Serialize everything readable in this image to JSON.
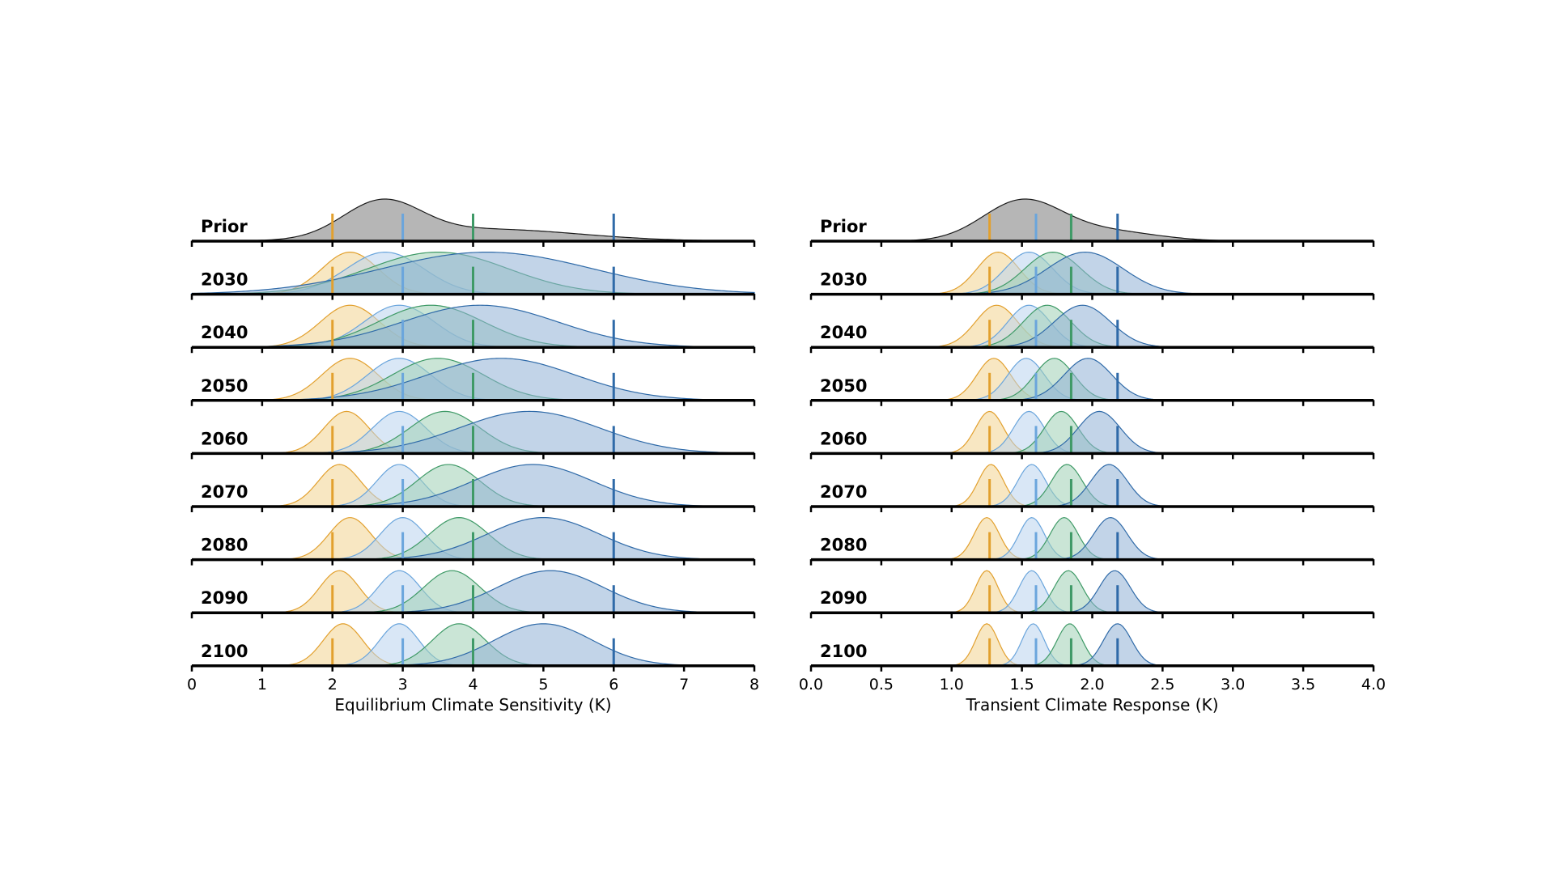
{
  "chart_data": [
    {
      "type": "area",
      "subtype": "ridgeline-density",
      "xlabel": "Equilibrium Climate Sensitivity (K)",
      "xlim": [
        0,
        8
      ],
      "xticks": [
        0,
        1,
        2,
        3,
        4,
        5,
        6,
        7,
        8
      ],
      "xticklabels": [
        "0",
        "1",
        "2",
        "3",
        "4",
        "5",
        "6",
        "7",
        "8"
      ],
      "rows": [
        "Prior",
        "2030",
        "2040",
        "2050",
        "2060",
        "2070",
        "2080",
        "2090",
        "2100"
      ],
      "true_value_markers": [
        {
          "value": 2.0,
          "color": "#e2a02e"
        },
        {
          "value": 3.0,
          "color": "#6aa5dc"
        },
        {
          "value": 4.0,
          "color": "#3f9a67"
        },
        {
          "value": 6.0,
          "color": "#2f6aa8"
        }
      ],
      "prior": {
        "color": "#a9a9a9",
        "components": [
          {
            "mean": 2.7,
            "sd": 0.55,
            "weight": 0.75
          },
          {
            "mean": 4.2,
            "sd": 1.3,
            "weight": 0.25
          }
        ]
      },
      "posteriors": [
        {
          "row": "2030",
          "series": [
            {
              "truth": 2.0,
              "color": "#f2d48f",
              "edge": "#e2a02e",
              "mean": 2.25,
              "sd": 0.4
            },
            {
              "truth": 3.0,
              "color": "#b9d4ee",
              "edge": "#6aa5dc",
              "mean": 2.75,
              "sd": 0.55
            },
            {
              "truth": 4.0,
              "color": "#9fd0b4",
              "edge": "#3f9a67",
              "mean": 3.5,
              "sd": 1.0
            },
            {
              "truth": 6.0,
              "color": "#8fb1d6",
              "edge": "#2f6aa8",
              "mean": 4.2,
              "sd": 1.5
            }
          ]
        },
        {
          "row": "2040",
          "series": [
            {
              "truth": 2.0,
              "color": "#f2d48f",
              "edge": "#e2a02e",
              "mean": 2.25,
              "sd": 0.42
            },
            {
              "truth": 3.0,
              "color": "#b9d4ee",
              "edge": "#6aa5dc",
              "mean": 2.95,
              "sd": 0.5
            },
            {
              "truth": 4.0,
              "color": "#9fd0b4",
              "edge": "#3f9a67",
              "mean": 3.4,
              "sd": 0.75
            },
            {
              "truth": 6.0,
              "color": "#8fb1d6",
              "edge": "#2f6aa8",
              "mean": 4.1,
              "sd": 1.1
            }
          ]
        },
        {
          "row": "2050",
          "series": [
            {
              "truth": 2.0,
              "color": "#f2d48f",
              "edge": "#e2a02e",
              "mean": 2.25,
              "sd": 0.4
            },
            {
              "truth": 3.0,
              "color": "#b9d4ee",
              "edge": "#6aa5dc",
              "mean": 2.95,
              "sd": 0.45
            },
            {
              "truth": 4.0,
              "color": "#9fd0b4",
              "edge": "#3f9a67",
              "mean": 3.5,
              "sd": 0.65
            },
            {
              "truth": 6.0,
              "color": "#8fb1d6",
              "edge": "#2f6aa8",
              "mean": 4.4,
              "sd": 1.05
            }
          ]
        },
        {
          "row": "2060",
          "series": [
            {
              "truth": 2.0,
              "color": "#f2d48f",
              "edge": "#e2a02e",
              "mean": 2.2,
              "sd": 0.32
            },
            {
              "truth": 3.0,
              "color": "#b9d4ee",
              "edge": "#6aa5dc",
              "mean": 2.95,
              "sd": 0.38
            },
            {
              "truth": 4.0,
              "color": "#9fd0b4",
              "edge": "#3f9a67",
              "mean": 3.6,
              "sd": 0.5
            },
            {
              "truth": 6.0,
              "color": "#8fb1d6",
              "edge": "#2f6aa8",
              "mean": 4.8,
              "sd": 1.0
            }
          ]
        },
        {
          "row": "2070",
          "series": [
            {
              "truth": 2.0,
              "color": "#f2d48f",
              "edge": "#e2a02e",
              "mean": 2.1,
              "sd": 0.3
            },
            {
              "truth": 3.0,
              "color": "#b9d4ee",
              "edge": "#6aa5dc",
              "mean": 2.95,
              "sd": 0.32
            },
            {
              "truth": 4.0,
              "color": "#9fd0b4",
              "edge": "#3f9a67",
              "mean": 3.65,
              "sd": 0.45
            },
            {
              "truth": 6.0,
              "color": "#8fb1d6",
              "edge": "#2f6aa8",
              "mean": 4.85,
              "sd": 0.85
            }
          ]
        },
        {
          "row": "2080",
          "series": [
            {
              "truth": 2.0,
              "color": "#f2d48f",
              "edge": "#e2a02e",
              "mean": 2.25,
              "sd": 0.3
            },
            {
              "truth": 3.0,
              "color": "#b9d4ee",
              "edge": "#6aa5dc",
              "mean": 3.0,
              "sd": 0.32
            },
            {
              "truth": 4.0,
              "color": "#9fd0b4",
              "edge": "#3f9a67",
              "mean": 3.8,
              "sd": 0.42
            },
            {
              "truth": 6.0,
              "color": "#8fb1d6",
              "edge": "#2f6aa8",
              "mean": 5.0,
              "sd": 0.8
            }
          ]
        },
        {
          "row": "2090",
          "series": [
            {
              "truth": 2.0,
              "color": "#f2d48f",
              "edge": "#e2a02e",
              "mean": 2.1,
              "sd": 0.28
            },
            {
              "truth": 3.0,
              "color": "#b9d4ee",
              "edge": "#6aa5dc",
              "mean": 2.95,
              "sd": 0.3
            },
            {
              "truth": 4.0,
              "color": "#9fd0b4",
              "edge": "#3f9a67",
              "mean": 3.7,
              "sd": 0.4
            },
            {
              "truth": 6.0,
              "color": "#8fb1d6",
              "edge": "#2f6aa8",
              "mean": 5.1,
              "sd": 0.75
            }
          ]
        },
        {
          "row": "2100",
          "series": [
            {
              "truth": 2.0,
              "color": "#f2d48f",
              "edge": "#e2a02e",
              "mean": 2.15,
              "sd": 0.28
            },
            {
              "truth": 3.0,
              "color": "#b9d4ee",
              "edge": "#6aa5dc",
              "mean": 2.95,
              "sd": 0.28
            },
            {
              "truth": 4.0,
              "color": "#9fd0b4",
              "edge": "#3f9a67",
              "mean": 3.8,
              "sd": 0.38
            },
            {
              "truth": 6.0,
              "color": "#8fb1d6",
              "edge": "#2f6aa8",
              "mean": 5.0,
              "sd": 0.7
            }
          ]
        }
      ]
    },
    {
      "type": "area",
      "subtype": "ridgeline-density",
      "xlabel": "Transient Climate Response (K)",
      "xlim": [
        0,
        4
      ],
      "xticks": [
        0,
        0.5,
        1,
        1.5,
        2,
        2.5,
        3,
        3.5,
        4
      ],
      "xticklabels": [
        "0.0",
        "0.5",
        "1.0",
        "1.5",
        "2.0",
        "2.5",
        "3.0",
        "3.5",
        "4.0"
      ],
      "rows": [
        "Prior",
        "2030",
        "2040",
        "2050",
        "2060",
        "2070",
        "2080",
        "2090",
        "2100"
      ],
      "true_value_markers": [
        {
          "value": 1.27,
          "color": "#e2a02e"
        },
        {
          "value": 1.6,
          "color": "#6aa5dc"
        },
        {
          "value": 1.85,
          "color": "#3f9a67"
        },
        {
          "value": 2.18,
          "color": "#2f6aa8"
        }
      ],
      "prior": {
        "color": "#a9a9a9",
        "components": [
          {
            "mean": 1.5,
            "sd": 0.28,
            "weight": 0.8
          },
          {
            "mean": 2.1,
            "sd": 0.35,
            "weight": 0.2
          }
        ]
      },
      "posteriors": [
        {
          "row": "2030",
          "series": [
            {
              "truth": 1.27,
              "color": "#f2d48f",
              "edge": "#e2a02e",
              "mean": 1.33,
              "sd": 0.15
            },
            {
              "truth": 1.6,
              "color": "#b9d4ee",
              "edge": "#6aa5dc",
              "mean": 1.55,
              "sd": 0.17
            },
            {
              "truth": 1.85,
              "color": "#9fd0b4",
              "edge": "#3f9a67",
              "mean": 1.72,
              "sd": 0.2
            },
            {
              "truth": 2.18,
              "color": "#8fb1d6",
              "edge": "#2f6aa8",
              "mean": 1.95,
              "sd": 0.27
            }
          ]
        },
        {
          "row": "2040",
          "series": [
            {
              "truth": 1.27,
              "color": "#f2d48f",
              "edge": "#e2a02e",
              "mean": 1.32,
              "sd": 0.15
            },
            {
              "truth": 1.6,
              "color": "#b9d4ee",
              "edge": "#6aa5dc",
              "mean": 1.55,
              "sd": 0.15
            },
            {
              "truth": 1.85,
              "color": "#9fd0b4",
              "edge": "#3f9a67",
              "mean": 1.68,
              "sd": 0.17
            },
            {
              "truth": 2.18,
              "color": "#8fb1d6",
              "edge": "#2f6aa8",
              "mean": 1.93,
              "sd": 0.2
            }
          ]
        },
        {
          "row": "2050",
          "series": [
            {
              "truth": 1.27,
              "color": "#f2d48f",
              "edge": "#e2a02e",
              "mean": 1.3,
              "sd": 0.12
            },
            {
              "truth": 1.6,
              "color": "#b9d4ee",
              "edge": "#6aa5dc",
              "mean": 1.53,
              "sd": 0.13
            },
            {
              "truth": 1.85,
              "color": "#9fd0b4",
              "edge": "#3f9a67",
              "mean": 1.73,
              "sd": 0.14
            },
            {
              "truth": 2.18,
              "color": "#8fb1d6",
              "edge": "#2f6aa8",
              "mean": 1.97,
              "sd": 0.17
            }
          ]
        },
        {
          "row": "2060",
          "series": [
            {
              "truth": 1.27,
              "color": "#f2d48f",
              "edge": "#e2a02e",
              "mean": 1.27,
              "sd": 0.1
            },
            {
              "truth": 1.6,
              "color": "#b9d4ee",
              "edge": "#6aa5dc",
              "mean": 1.55,
              "sd": 0.11
            },
            {
              "truth": 1.85,
              "color": "#9fd0b4",
              "edge": "#3f9a67",
              "mean": 1.78,
              "sd": 0.12
            },
            {
              "truth": 2.18,
              "color": "#8fb1d6",
              "edge": "#2f6aa8",
              "mean": 2.05,
              "sd": 0.15
            }
          ]
        },
        {
          "row": "2070",
          "series": [
            {
              "truth": 1.27,
              "color": "#f2d48f",
              "edge": "#e2a02e",
              "mean": 1.28,
              "sd": 0.09
            },
            {
              "truth": 1.6,
              "color": "#b9d4ee",
              "edge": "#6aa5dc",
              "mean": 1.57,
              "sd": 0.1
            },
            {
              "truth": 1.85,
              "color": "#9fd0b4",
              "edge": "#3f9a67",
              "mean": 1.82,
              "sd": 0.11
            },
            {
              "truth": 2.18,
              "color": "#8fb1d6",
              "edge": "#2f6aa8",
              "mean": 2.12,
              "sd": 0.13
            }
          ]
        },
        {
          "row": "2080",
          "series": [
            {
              "truth": 1.27,
              "color": "#f2d48f",
              "edge": "#e2a02e",
              "mean": 1.25,
              "sd": 0.09
            },
            {
              "truth": 1.6,
              "color": "#b9d4ee",
              "edge": "#6aa5dc",
              "mean": 1.57,
              "sd": 0.09
            },
            {
              "truth": 1.85,
              "color": "#9fd0b4",
              "edge": "#3f9a67",
              "mean": 1.8,
              "sd": 0.1
            },
            {
              "truth": 2.18,
              "color": "#8fb1d6",
              "edge": "#2f6aa8",
              "mean": 2.13,
              "sd": 0.12
            }
          ]
        },
        {
          "row": "2090",
          "series": [
            {
              "truth": 1.27,
              "color": "#f2d48f",
              "edge": "#e2a02e",
              "mean": 1.25,
              "sd": 0.08
            },
            {
              "truth": 1.6,
              "color": "#b9d4ee",
              "edge": "#6aa5dc",
              "mean": 1.57,
              "sd": 0.09
            },
            {
              "truth": 1.85,
              "color": "#9fd0b4",
              "edge": "#3f9a67",
              "mean": 1.83,
              "sd": 0.1
            },
            {
              "truth": 2.18,
              "color": "#8fb1d6",
              "edge": "#2f6aa8",
              "mean": 2.16,
              "sd": 0.11
            }
          ]
        },
        {
          "row": "2100",
          "series": [
            {
              "truth": 1.27,
              "color": "#f2d48f",
              "edge": "#e2a02e",
              "mean": 1.25,
              "sd": 0.08
            },
            {
              "truth": 1.6,
              "color": "#b9d4ee",
              "edge": "#6aa5dc",
              "mean": 1.58,
              "sd": 0.08
            },
            {
              "truth": 1.85,
              "color": "#9fd0b4",
              "edge": "#3f9a67",
              "mean": 1.84,
              "sd": 0.09
            },
            {
              "truth": 2.18,
              "color": "#8fb1d6",
              "edge": "#2f6aa8",
              "mean": 2.18,
              "sd": 0.1
            }
          ]
        }
      ]
    }
  ]
}
